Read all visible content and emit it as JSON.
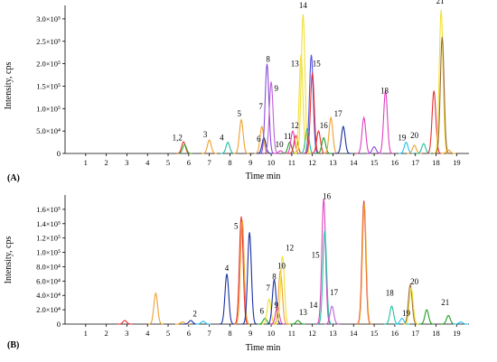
{
  "chart_data": [
    {
      "type": "line",
      "panel_label": "(A)",
      "xlabel": "Time min",
      "ylabel": "Intensity, cps",
      "xlim": [
        0,
        19.6
      ],
      "ylim": [
        0,
        330000
      ],
      "x_ticks": [
        1,
        2,
        3,
        4,
        5,
        6,
        7,
        8,
        9,
        10,
        11,
        12,
        13,
        14,
        15,
        16,
        17,
        18,
        19
      ],
      "y_ticks": [
        {
          "value": 0,
          "label": "0"
        },
        {
          "value": 50000,
          "label": "5.0×10⁴"
        },
        {
          "value": 100000,
          "label": "1.0×10⁵"
        },
        {
          "value": 150000,
          "label": "1.5×10⁵"
        },
        {
          "value": 200000,
          "label": "2.0×10⁵"
        },
        {
          "value": 250000,
          "label": "2.5×10⁵"
        },
        {
          "value": 300000,
          "label": "3.0×10⁵"
        }
      ],
      "peaks": [
        {
          "x": 5.75,
          "y": 26000,
          "color": "#e83030"
        },
        {
          "x": 5.8,
          "y": 20000,
          "color": "#33b033"
        },
        {
          "x": 7.0,
          "y": 30000,
          "color": "#f0a030"
        },
        {
          "x": 7.9,
          "y": 25000,
          "color": "#20c0a0"
        },
        {
          "x": 8.55,
          "y": 75000,
          "color": "#f0a030"
        },
        {
          "x": 9.55,
          "y": 60000,
          "color": "#f0a030"
        },
        {
          "x": 9.65,
          "y": 35000,
          "color": "#1a30a0"
        },
        {
          "x": 9.8,
          "y": 200000,
          "color": "#8a4fd8"
        },
        {
          "x": 10.0,
          "y": 160000,
          "color": "#c060d8"
        },
        {
          "x": 10.45,
          "y": 6000,
          "color": "#e040c0"
        },
        {
          "x": 10.9,
          "y": 25000,
          "color": "#20a020"
        },
        {
          "x": 11.05,
          "y": 50000,
          "color": "#e040c0"
        },
        {
          "x": 11.2,
          "y": 40000,
          "color": "#e83030"
        },
        {
          "x": 11.45,
          "y": 220000,
          "color": "#f0e030"
        },
        {
          "x": 11.55,
          "y": 310000,
          "color": "#f0e030"
        },
        {
          "x": 11.75,
          "y": 55000,
          "color": "#20c0a0"
        },
        {
          "x": 11.95,
          "y": 220000,
          "color": "#5050e0"
        },
        {
          "x": 12.0,
          "y": 180000,
          "color": "#e83030"
        },
        {
          "x": 12.3,
          "y": 50000,
          "color": "#e83030"
        },
        {
          "x": 12.55,
          "y": 35000,
          "color": "#20a020"
        },
        {
          "x": 12.9,
          "y": 80000,
          "color": "#f0a030"
        },
        {
          "x": 13.5,
          "y": 60000,
          "color": "#1a30a0"
        },
        {
          "x": 14.5,
          "y": 80000,
          "color": "#e040c0"
        },
        {
          "x": 15.0,
          "y": 15000,
          "color": "#8a4fd8"
        },
        {
          "x": 15.55,
          "y": 140000,
          "color": "#e040c0"
        },
        {
          "x": 16.55,
          "y": 25000,
          "color": "#20c0f0"
        },
        {
          "x": 16.95,
          "y": 18000,
          "color": "#f0a030"
        },
        {
          "x": 17.4,
          "y": 22000,
          "color": "#20c0a0"
        },
        {
          "x": 17.9,
          "y": 140000,
          "color": "#e83030"
        },
        {
          "x": 18.25,
          "y": 320000,
          "color": "#f0e030"
        },
        {
          "x": 18.3,
          "y": 260000,
          "color": "#9a6a3a"
        },
        {
          "x": 18.6,
          "y": 8000,
          "color": "#f0a030"
        }
      ],
      "labels": [
        {
          "text": "1,2",
          "x": 5.45,
          "y": 25000
        },
        {
          "text": "3",
          "x": 6.8,
          "y": 32000
        },
        {
          "text": "4",
          "x": 7.6,
          "y": 25000
        },
        {
          "text": "5",
          "x": 8.45,
          "y": 78000
        },
        {
          "text": "6",
          "x": 9.4,
          "y": 22000
        },
        {
          "text": "7",
          "x": 9.5,
          "y": 95000
        },
        {
          "text": "8",
          "x": 9.85,
          "y": 200000
        },
        {
          "text": "9",
          "x": 10.25,
          "y": 135000
        },
        {
          "text": "10",
          "x": 10.4,
          "y": 10000
        },
        {
          "text": "11",
          "x": 10.8,
          "y": 28000
        },
        {
          "text": "12",
          "x": 11.15,
          "y": 52000
        },
        {
          "text": "13",
          "x": 11.15,
          "y": 190000
        },
        {
          "text": "14",
          "x": 11.55,
          "y": 320000
        },
        {
          "text": "15",
          "x": 12.2,
          "y": 190000
        },
        {
          "text": "16",
          "x": 12.55,
          "y": 52000
        },
        {
          "text": "17",
          "x": 13.25,
          "y": 78000
        },
        {
          "text": "18",
          "x": 15.5,
          "y": 130000
        },
        {
          "text": "19",
          "x": 16.35,
          "y": 25000
        },
        {
          "text": "20",
          "x": 16.95,
          "y": 30000
        },
        {
          "text": "21",
          "x": 18.2,
          "y": 330000
        }
      ]
    },
    {
      "type": "line",
      "panel_label": "(B)",
      "xlabel": "Time min",
      "ylabel": "Intensity, cps",
      "xlim": [
        0,
        19.6
      ],
      "ylim": [
        0,
        180000
      ],
      "x_ticks": [
        1,
        2,
        3,
        4,
        5,
        6,
        7,
        8,
        9,
        10,
        11,
        12,
        13,
        14,
        15,
        16,
        17,
        18,
        19
      ],
      "y_ticks": [
        {
          "value": 0,
          "label": "0"
        },
        {
          "value": 20000,
          "label": "2.0×10⁴"
        },
        {
          "value": 40000,
          "label": "4.0×10⁴"
        },
        {
          "value": 60000,
          "label": "6.0×10⁴"
        },
        {
          "value": 80000,
          "label": "8.0×10⁴"
        },
        {
          "value": 100000,
          "label": "1.0×10⁵"
        },
        {
          "value": 120000,
          "label": "1.2×10⁵"
        },
        {
          "value": 140000,
          "label": "1.4×10⁵"
        },
        {
          "value": 160000,
          "label": "1.6×10⁵"
        }
      ],
      "peaks": [
        {
          "x": 2.9,
          "y": 5000,
          "color": "#e83030"
        },
        {
          "x": 4.4,
          "y": 43000,
          "color": "#f0a030"
        },
        {
          "x": 5.7,
          "y": 3000,
          "color": "#f0a030"
        },
        {
          "x": 6.1,
          "y": 5000,
          "color": "#1a30a0"
        },
        {
          "x": 6.7,
          "y": 4000,
          "color": "#20c0f0"
        },
        {
          "x": 7.85,
          "y": 70000,
          "color": "#1a30a0"
        },
        {
          "x": 8.55,
          "y": 150000,
          "color": "#e83030"
        },
        {
          "x": 8.6,
          "y": 145000,
          "color": "#f0a030"
        },
        {
          "x": 8.95,
          "y": 128000,
          "color": "#1a30a0"
        },
        {
          "x": 9.7,
          "y": 8000,
          "color": "#20a020"
        },
        {
          "x": 9.9,
          "y": 35000,
          "color": "#f0e030"
        },
        {
          "x": 10.15,
          "y": 62000,
          "color": "#1a30a0"
        },
        {
          "x": 10.3,
          "y": 25000,
          "color": "#e040c0"
        },
        {
          "x": 10.45,
          "y": 75000,
          "color": "#f0a030"
        },
        {
          "x": 10.55,
          "y": 95000,
          "color": "#f0e030"
        },
        {
          "x": 11.3,
          "y": 5000,
          "color": "#20a020"
        },
        {
          "x": 12.55,
          "y": 175000,
          "color": "#e040c0"
        },
        {
          "x": 12.6,
          "y": 130000,
          "color": "#20c0a0"
        },
        {
          "x": 12.95,
          "y": 25000,
          "color": "#c060d8"
        },
        {
          "x": 14.5,
          "y": 172000,
          "color": "#e83030"
        },
        {
          "x": 14.52,
          "y": 168000,
          "color": "#f0a030"
        },
        {
          "x": 15.85,
          "y": 25000,
          "color": "#20c0a0"
        },
        {
          "x": 16.35,
          "y": 8000,
          "color": "#20c0f0"
        },
        {
          "x": 16.75,
          "y": 55000,
          "color": "#9a6a3a"
        },
        {
          "x": 16.8,
          "y": 50000,
          "color": "#f0e030"
        },
        {
          "x": 17.55,
          "y": 20000,
          "color": "#20a020"
        },
        {
          "x": 18.6,
          "y": 12000,
          "color": "#20a020"
        },
        {
          "x": 19.2,
          "y": 3000,
          "color": "#20c0f0"
        }
      ],
      "labels": [
        {
          "text": "2",
          "x": 6.3,
          "y": 8000
        },
        {
          "text": "4",
          "x": 7.85,
          "y": 72000
        },
        {
          "text": "5",
          "x": 8.3,
          "y": 130000
        },
        {
          "text": "6",
          "x": 9.55,
          "y": 12000
        },
        {
          "text": "7",
          "x": 9.85,
          "y": 44000
        },
        {
          "text": "8",
          "x": 10.15,
          "y": 60000
        },
        {
          "text": "9",
          "x": 10.25,
          "y": 20000
        },
        {
          "text": "10",
          "x": 10.5,
          "y": 75000
        },
        {
          "text": "12",
          "x": 10.9,
          "y": 100000
        },
        {
          "text": "13",
          "x": 11.55,
          "y": 10000
        },
        {
          "text": "14",
          "x": 12.05,
          "y": 20000
        },
        {
          "text": "15",
          "x": 12.15,
          "y": 90000
        },
        {
          "text": "16",
          "x": 12.7,
          "y": 172000
        },
        {
          "text": "17",
          "x": 13.05,
          "y": 38000
        },
        {
          "text": "18",
          "x": 15.75,
          "y": 37000
        },
        {
          "text": "19",
          "x": 16.55,
          "y": 9000
        },
        {
          "text": "20",
          "x": 16.95,
          "y": 53000
        },
        {
          "text": "21",
          "x": 18.45,
          "y": 24000
        }
      ]
    }
  ]
}
